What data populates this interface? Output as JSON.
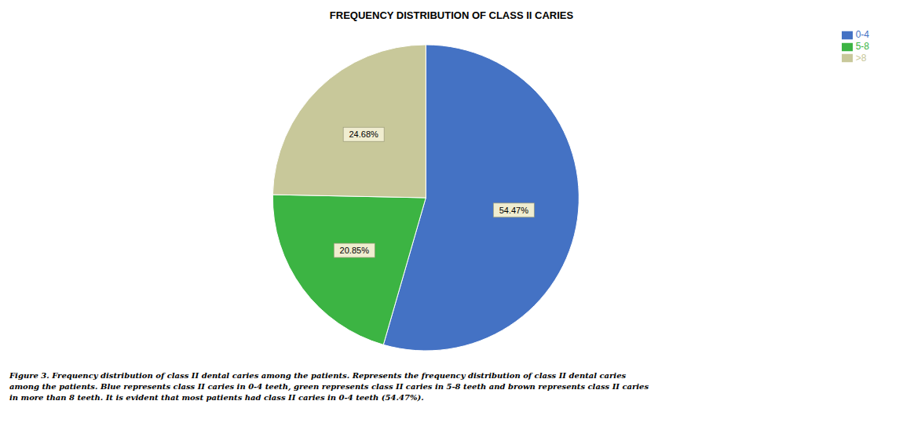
{
  "chart_data": {
    "type": "pie",
    "title": "FREQUENCY DISTRIBUTION OF CLASS II CARIES",
    "categories": [
      "0-4",
      "5-8",
      ">8"
    ],
    "values": [
      54.47,
      20.85,
      24.68
    ],
    "value_labels": [
      "54.47%",
      "20.85%",
      "24.68%"
    ],
    "colors": [
      "#4472C4",
      "#3CB443",
      "#C8C89A"
    ],
    "data_labels": true,
    "legend": "upper right",
    "caption": "Figure 3. Frequency distribution of class II dental caries among the patients. Represents the frequency distribution of class II dental caries\namong the patients. Blue represents class II caries in 0-4 teeth, green represents class II caries in 5-8 teeth and brown represents class II caries\nin more than 8 teeth. It is evident that most patients had class II caries in 0-4 teeth (54.47%)."
  }
}
